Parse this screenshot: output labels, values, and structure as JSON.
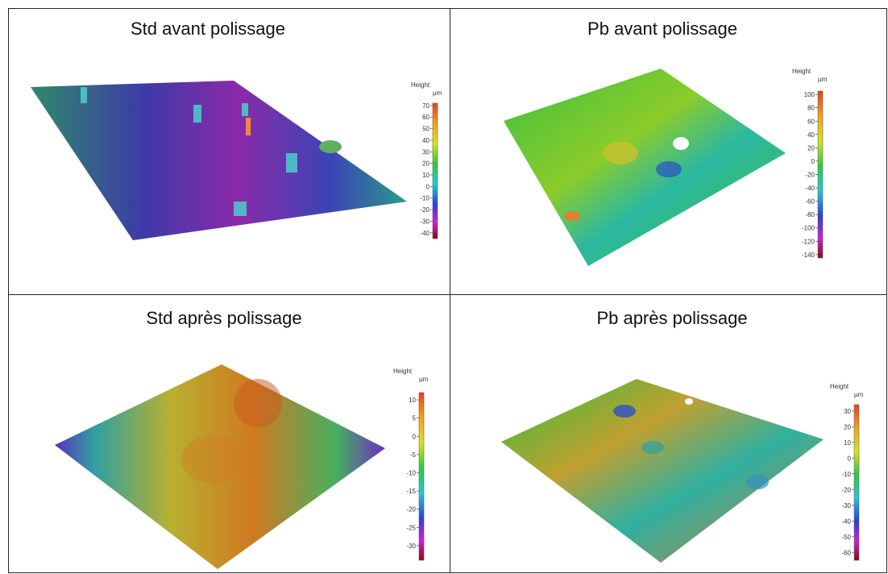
{
  "panels": [
    {
      "title": "Std avant polissage",
      "colorbar": {
        "label": "Height",
        "unit": "µm",
        "lim": [
          -45,
          72
        ],
        "ticks": [
          70,
          60,
          50,
          40,
          30,
          20,
          10,
          0,
          -10,
          -20,
          -30,
          -40
        ]
      }
    },
    {
      "title": "Pb avant polissage",
      "colorbar": {
        "label": "Height",
        "unit": "µm",
        "lim": [
          -145,
          105
        ],
        "ticks": [
          100,
          80,
          60,
          40,
          20,
          0,
          -20,
          -40,
          -60,
          -80,
          -100,
          -120,
          -140
        ]
      }
    },
    {
      "title": "Std après polissage",
      "colorbar": {
        "label": "Height",
        "unit": "µm",
        "lim": [
          -34,
          12
        ],
        "ticks": [
          10,
          5,
          0,
          -5,
          -10,
          -15,
          -20,
          -25,
          -30
        ]
      }
    },
    {
      "title": "Pb après polissage",
      "colorbar": {
        "label": "Height",
        "unit": "µm",
        "lim": [
          -65,
          34
        ],
        "ticks": [
          30,
          20,
          10,
          0,
          -10,
          -20,
          -30,
          -40,
          -50,
          -60
        ]
      }
    }
  ]
}
